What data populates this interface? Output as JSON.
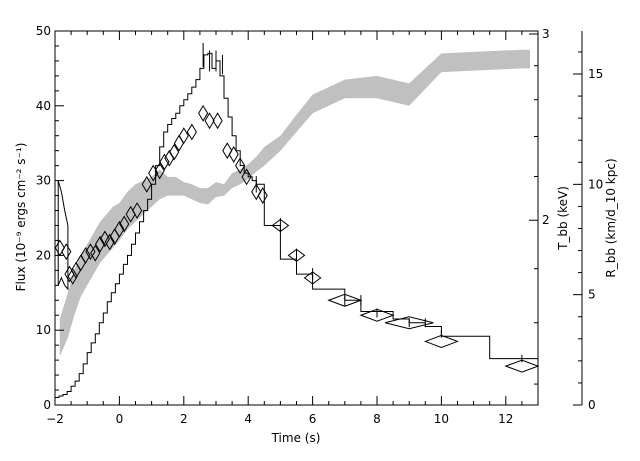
{
  "chart_data": {
    "type": "line",
    "title": "",
    "xlabel": "Time (s)",
    "ylabel_left": "Flux (10⁻⁹ ergs cm⁻² s⁻¹)",
    "ylabel_right_T": "T_bb (keV)",
    "ylabel_right_R": "R_bb (km/d_10 kpc)",
    "xlim": [
      -2,
      13
    ],
    "ylim": [
      0,
      50
    ],
    "x_ticks": [
      -2,
      0,
      2,
      4,
      6,
      8,
      10,
      12
    ],
    "x_tick_labels": [
      "−2",
      "0",
      "2",
      "4",
      "6",
      "8",
      "10",
      "12"
    ],
    "y_ticks": [
      0,
      10,
      20,
      30,
      40,
      50
    ],
    "y_tick_labels": [
      "0",
      "10",
      "20",
      "30",
      "40",
      "50"
    ],
    "T_axis": {
      "ticks": [
        2,
        3
      ],
      "tick_labels": [
        "2",
        "3"
      ],
      "flux_pos": [
        24.7,
        49.6
      ]
    },
    "R_axis": {
      "ticks": [
        0,
        5,
        10,
        15
      ],
      "tick_labels": [
        "0",
        "5",
        "10",
        "15"
      ],
      "flux_per_unit": 2.95
    },
    "grid": false,
    "flux_histogram": {
      "name": "Flux",
      "color": "#000000",
      "edges": [
        -2.0,
        -1.875,
        -1.75,
        -1.625,
        -1.5,
        -1.375,
        -1.25,
        -1.125,
        -1.0,
        -0.875,
        -0.75,
        -0.625,
        -0.5,
        -0.375,
        -0.25,
        -0.125,
        0.0,
        0.125,
        0.25,
        0.375,
        0.5,
        0.625,
        0.75,
        0.875,
        1.0,
        1.125,
        1.25,
        1.375,
        1.5,
        1.625,
        1.75,
        1.875,
        2.0,
        2.125,
        2.25,
        2.375,
        2.5,
        2.625,
        2.75,
        2.875,
        3.0,
        3.125,
        3.25,
        3.375,
        3.5,
        3.625,
        3.75,
        3.875,
        4.0,
        4.125,
        4.25,
        4.5,
        5.0,
        5.5,
        6.0,
        7.0,
        7.5,
        8.5,
        9.0,
        9.5,
        10.0,
        11.5,
        12.0,
        12.5,
        13.0
      ],
      "values": [
        1.0,
        1.2,
        1.4,
        1.8,
        2.5,
        3.2,
        4.2,
        5.5,
        7.0,
        8.3,
        9.5,
        11.0,
        12.3,
        13.8,
        15.0,
        16.2,
        17.5,
        18.8,
        20.0,
        21.5,
        23.0,
        24.5,
        26.0,
        27.5,
        29.5,
        32.0,
        34.5,
        36.5,
        37.5,
        38.3,
        39.0,
        40.0,
        40.8,
        41.6,
        42.5,
        43.5,
        45.0,
        46.8,
        47.0,
        45.0,
        46.0,
        44.0,
        41.0,
        38.5,
        36.0,
        34.0,
        32.0,
        31.0,
        30.5,
        30.0,
        29.5,
        24.0,
        19.5,
        17.5,
        15.5,
        14.0,
        12.5,
        11.5,
        11.0,
        10.5,
        9.2,
        6.2,
        6.2,
        6.2
      ]
    },
    "flux_errorbars": {
      "x": [
        2.6,
        2.8,
        3.0,
        3.2,
        4.25,
        5.0,
        5.5,
        6.0,
        7.0,
        7.5,
        8.0,
        9.0,
        9.5,
        10.0,
        12.5
      ],
      "y": [
        46.8,
        46.0,
        46.0,
        45.5,
        29.5,
        24.0,
        20.0,
        17.5,
        14.0,
        14.0,
        12.3,
        11.0,
        11.0,
        9.5,
        6.2
      ],
      "yerr": [
        1.6,
        1.4,
        1.4,
        1.3,
        1.1,
        1.0,
        0.9,
        0.8,
        0.7,
        0.7,
        0.6,
        0.6,
        0.6,
        0.5,
        0.5
      ]
    },
    "T_diamonds": {
      "name": "T_bb",
      "x": [
        -1.85,
        -1.65,
        -1.55,
        -1.45,
        -1.35,
        -1.2,
        -1.05,
        -0.9,
        -0.75,
        -0.6,
        -0.45,
        -0.3,
        -0.15,
        0.0,
        0.15,
        0.35,
        0.55,
        0.85,
        1.05,
        1.25,
        1.4,
        1.55,
        1.7,
        1.85,
        2.0,
        2.25,
        2.6,
        2.8,
        3.05,
        3.35,
        3.55,
        3.75,
        3.95,
        4.25,
        4.45,
        5.0,
        5.5,
        6.0,
        7.0,
        8.0,
        9.0,
        10.0,
        12.5
      ],
      "y": [
        21.0,
        20.5,
        17.5,
        17.2,
        18.0,
        19.0,
        20.0,
        20.5,
        20.3,
        21.5,
        22.2,
        21.8,
        22.5,
        23.5,
        24.2,
        25.5,
        26.0,
        29.5,
        31.0,
        31.3,
        32.5,
        33.0,
        33.8,
        35.0,
        36.0,
        36.5,
        39.0,
        38.0,
        38.0,
        34.0,
        33.5,
        32.0,
        30.5,
        28.5,
        28.0,
        24.0,
        20.0,
        17.0,
        14.0,
        12.0,
        11.0,
        8.5,
        5.2
      ],
      "xerr": [
        0.06,
        0.06,
        0.06,
        0.06,
        0.06,
        0.06,
        0.06,
        0.06,
        0.06,
        0.06,
        0.06,
        0.06,
        0.06,
        0.06,
        0.06,
        0.06,
        0.06,
        0.06,
        0.06,
        0.06,
        0.06,
        0.06,
        0.06,
        0.06,
        0.08,
        0.09,
        0.12,
        0.12,
        0.12,
        0.12,
        0.12,
        0.12,
        0.12,
        0.12,
        0.12,
        0.25,
        0.25,
        0.25,
        0.5,
        0.5,
        0.75,
        0.5,
        0.5
      ],
      "yerr": [
        1.0,
        1.0,
        1.0,
        1.0,
        1.0,
        1.0,
        1.0,
        1.0,
        1.0,
        1.0,
        1.0,
        1.0,
        1.0,
        1.0,
        1.0,
        1.0,
        1.0,
        1.0,
        1.0,
        1.0,
        1.0,
        1.0,
        1.0,
        1.0,
        1.0,
        1.0,
        1.0,
        1.0,
        1.0,
        1.0,
        1.0,
        1.0,
        1.0,
        1.0,
        1.0,
        0.5,
        0.5,
        0.7,
        0.5,
        0.5,
        0.5,
        0.6,
        0.6
      ]
    },
    "T_early_band": {
      "x": [
        -1.9,
        -1.8,
        -1.7,
        -1.6
      ],
      "lower": [
        16.0,
        17.0,
        16.0,
        15.5
      ],
      "upper": [
        30.0,
        28.5,
        26.0,
        24.0
      ]
    },
    "R_band": {
      "name": "R_bb",
      "color": "#c0c0c0",
      "x": [
        -1.85,
        -1.6,
        -1.4,
        -1.2,
        -1.0,
        -0.8,
        -0.6,
        -0.4,
        -0.2,
        0.0,
        0.25,
        0.5,
        0.75,
        1.0,
        1.25,
        1.5,
        1.75,
        2.0,
        2.25,
        2.5,
        2.75,
        3.0,
        3.25,
        3.5,
        3.75,
        4.0,
        4.25,
        4.5,
        5.0,
        5.5,
        6.0,
        7.0,
        8.0,
        9.0,
        10.0,
        12.5,
        12.75
      ],
      "lower": [
        6.5,
        9.0,
        12.0,
        14.5,
        16.0,
        17.5,
        19.0,
        20.0,
        21.0,
        22.0,
        23.5,
        24.5,
        25.5,
        26.5,
        27.5,
        28.0,
        28.0,
        28.0,
        27.5,
        27.0,
        26.8,
        27.8,
        28.0,
        29.0,
        29.5,
        30.2,
        31.2,
        32.0,
        34.0,
        36.5,
        39.0,
        41.0,
        41.0,
        40.0,
        44.5,
        45.0,
        45.0
      ],
      "upper": [
        11.5,
        15.0,
        18.0,
        20.0,
        21.5,
        23.0,
        24.5,
        25.5,
        26.5,
        27.0,
        28.5,
        29.5,
        30.0,
        30.5,
        31.5,
        30.5,
        30.5,
        29.8,
        29.5,
        29.0,
        29.0,
        29.8,
        29.5,
        31.0,
        31.5,
        32.2,
        33.2,
        34.5,
        36.0,
        38.8,
        41.5,
        43.5,
        44.0,
        43.0,
        47.0,
        47.5,
        47.5
      ]
    }
  }
}
